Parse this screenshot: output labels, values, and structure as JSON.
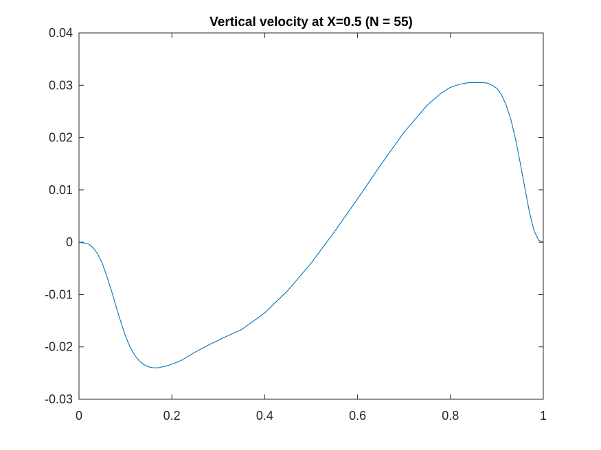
{
  "chart_data": {
    "type": "line",
    "title": "Vertical velocity at X=0.5 (N = 55)",
    "xlabel": "",
    "ylabel": "",
    "xlim": [
      0,
      1
    ],
    "ylim": [
      -0.03,
      0.04
    ],
    "x_ticks": [
      0,
      0.2,
      0.4,
      0.6,
      0.8,
      1
    ],
    "x_tick_labels": [
      "0",
      "0.2",
      "0.4",
      "0.6",
      "0.8",
      "1"
    ],
    "y_ticks": [
      -0.03,
      -0.02,
      -0.01,
      0,
      0.01,
      0.02,
      0.03,
      0.04
    ],
    "y_tick_labels": [
      "-0.03",
      "-0.02",
      "-0.01",
      "0",
      "0.01",
      "0.02",
      "0.03",
      "0.04"
    ],
    "grid": false,
    "line_color": "#0072BD",
    "axis_color": "#262626",
    "series": [
      {
        "x": [
          0,
          0.02,
          0.03,
          0.04,
          0.05,
          0.06,
          0.07,
          0.08,
          0.09,
          0.1,
          0.11,
          0.12,
          0.13,
          0.14,
          0.15,
          0.16,
          0.17,
          0.18,
          0.19,
          0.2,
          0.22,
          0.25,
          0.28,
          0.31,
          0.35,
          0.4,
          0.45,
          0.5,
          0.55,
          0.6,
          0.65,
          0.7,
          0.75,
          0.78,
          0.8,
          0.82,
          0.84,
          0.86,
          0.87,
          0.88,
          0.89,
          0.9,
          0.91,
          0.92,
          0.93,
          0.94,
          0.95,
          0.96,
          0.97,
          0.98,
          0.99,
          1.0
        ],
        "y": [
          0,
          -0.0003,
          -0.001,
          -0.0022,
          -0.004,
          -0.0065,
          -0.0093,
          -0.0123,
          -0.0152,
          -0.0179,
          -0.02,
          -0.0216,
          -0.0227,
          -0.0234,
          -0.0238,
          -0.024,
          -0.024,
          -0.0238,
          -0.0236,
          -0.0233,
          -0.0226,
          -0.021,
          -0.0196,
          -0.0183,
          -0.0167,
          -0.0135,
          -0.0092,
          -0.004,
          0.002,
          0.0083,
          0.0148,
          0.021,
          0.0262,
          0.0285,
          0.0296,
          0.0302,
          0.0305,
          0.0305,
          0.0305,
          0.0304,
          0.03,
          0.0294,
          0.0282,
          0.0262,
          0.0235,
          0.0198,
          0.0153,
          0.0105,
          0.0058,
          0.0022,
          0.0004,
          0
        ]
      }
    ]
  }
}
